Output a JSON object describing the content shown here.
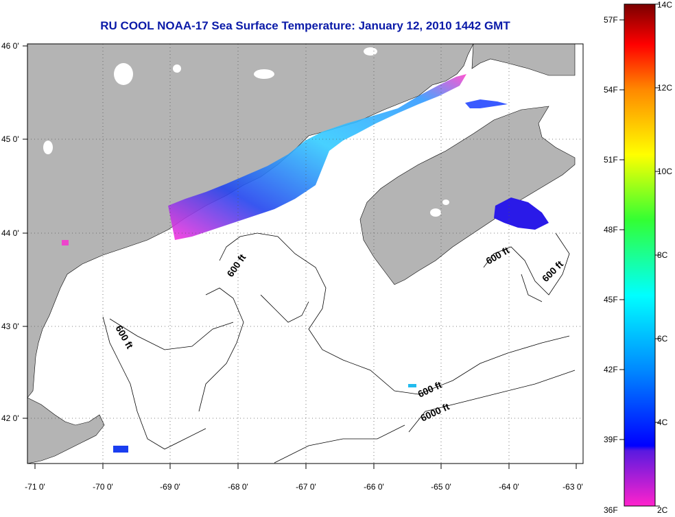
{
  "title": "RU COOL  NOAA-17  Sea Surface Temperature:  January 12, 2010 1442 GMT",
  "x_ticks": [
    "-71 0'",
    "-70 0'",
    "-69 0'",
    "-68 0'",
    "-67 0'",
    "-66 0'",
    "-65 0'",
    "-64 0'",
    "-63 0'"
  ],
  "y_ticks": [
    "46 0'",
    "45 0'",
    "44 0'",
    "43 0'",
    "42 0'"
  ],
  "contour_labels": [
    "600 ft",
    "600 ft",
    "600 ft",
    "600 ft",
    "6000 ft"
  ],
  "colorbar": {
    "fahrenheit_labels": [
      "57F",
      "54F",
      "51F",
      "48F",
      "45F",
      "42F",
      "39F",
      "36F"
    ],
    "celsius_labels": [
      "14C",
      "12C",
      "10C",
      "8C",
      "6C",
      "4C",
      "2C"
    ]
  },
  "colors": {
    "land": "#b4b4b4",
    "title": "#0a1aa8",
    "grid": "#000000"
  }
}
